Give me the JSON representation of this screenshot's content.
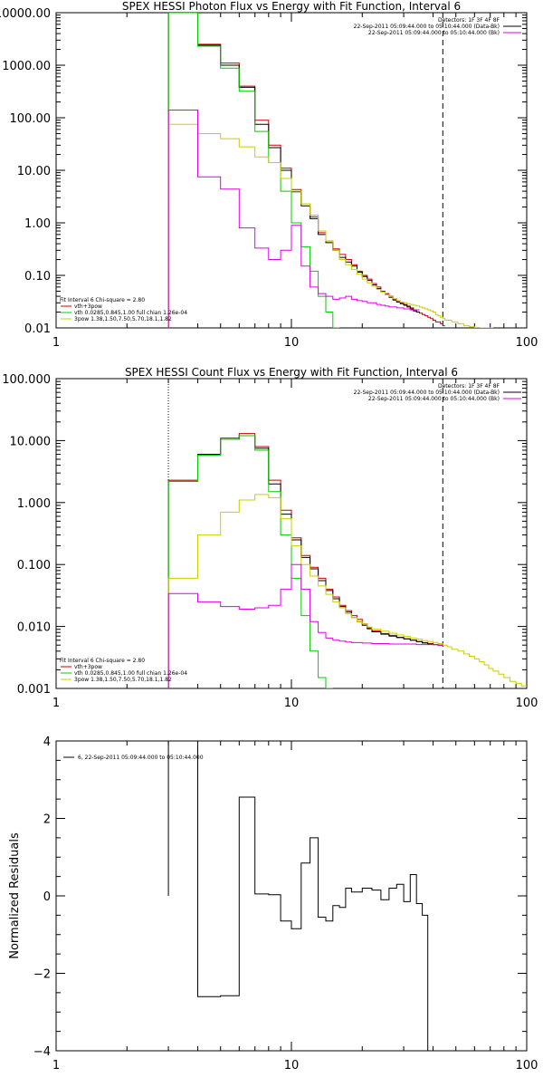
{
  "chart_data": [
    {
      "type": "line",
      "title": "SPEX HESSI Photon Flux vs Energy with Fit Function, Interval 6",
      "xscale": "log",
      "yscale": "log",
      "xlim": [
        1,
        100
      ],
      "ylim": [
        0.01,
        10000
      ],
      "xticks": [
        {
          "v": 1,
          "label": "1"
        },
        {
          "v": 10,
          "label": "10"
        },
        {
          "v": 100,
          "label": "100"
        }
      ],
      "yticks": [
        {
          "v": 0.01,
          "label": "0.01"
        },
        {
          "v": 0.1,
          "label": "0.10"
        },
        {
          "v": 1,
          "label": "1.00"
        },
        {
          "v": 10,
          "label": "10.00"
        },
        {
          "v": 100,
          "label": "100.00"
        },
        {
          "v": 1000,
          "label": "1000.00"
        },
        {
          "v": 10000,
          "label": "10000.00"
        }
      ],
      "vlines": [
        {
          "x": 3.0,
          "color": "#000000",
          "style": "dotted"
        },
        {
          "x": 44.0,
          "color": "#000000",
          "style": "dashed"
        }
      ],
      "legend_top": [
        "Detectors: 1F 3F 4F 8F",
        "22-Sep-2011 05:09:44.000 to 05:10:44.000 (Data-Bk)",
        "22-Sep-2011 05:09:44.000 to 05:10:44.000 (Bk)"
      ],
      "legend_top_colors": [
        "",
        "#000000",
        "#e000e0"
      ],
      "legend_bottom": [
        "Fit Interval 6   Chi-square = 2.80",
        "vth+3pow",
        "vth 0.0285,0.845,1.00  full chian 1.26e-04",
        "3pow 1.38,1.50,7.50,5.70,18.1,1.82"
      ],
      "legend_bottom_colors": [
        "",
        "#cc0000",
        "#00cc00",
        "#cccc00"
      ],
      "edges": [
        3.0,
        3.5,
        4.0,
        4.5,
        5.0,
        5.5,
        6.0,
        6.5,
        7.0,
        7.5,
        8.0,
        8.5,
        9.0,
        9.5,
        10.0,
        10.5,
        11.0,
        12.0,
        13.0,
        14.0,
        15.0,
        16.0,
        17.0,
        18.0,
        19.0,
        20.0,
        21.0,
        22.0,
        23.0,
        24.0,
        25.0,
        26.0,
        27.0,
        28.0,
        29.0,
        30.0,
        31.0,
        32.0,
        33.0,
        34.0,
        35.0,
        36.0,
        37.0,
        38.0,
        39.0,
        40.0,
        41.0,
        42.0,
        43.0,
        44.0,
        45.0,
        48.0,
        51.0,
        54.0,
        57.0,
        60.0,
        63.0,
        66.0,
        69.0,
        72.0
      ],
      "series": [
        {
          "name": "vth+3pow",
          "color": "#cc0000",
          "values": [
            10000,
            10000,
            2500,
            2500,
            1100,
            1100,
            400,
            400,
            90,
            90,
            30,
            30,
            11,
            11,
            4.3,
            4.3,
            2.3,
            1.3,
            0.65,
            0.45,
            0.32,
            0.25,
            0.2,
            0.16,
            0.12,
            0.1,
            0.085,
            0.07,
            0.06,
            0.05,
            0.045,
            0.04,
            0.035,
            0.032,
            0.03,
            0.028,
            0.026,
            0.024,
            0.022,
            0.02,
            0.019,
            0.018,
            0.017,
            0.016,
            0.015,
            0.014,
            0.013,
            0.013,
            0.012,
            0.011
          ]
        },
        {
          "name": "Data-Bk",
          "color": "#000000",
          "values": [
            10000,
            10000,
            2400,
            2400,
            1000,
            1000,
            380,
            380,
            75,
            75,
            27,
            27,
            10,
            10,
            3.9,
            3.9,
            2.1,
            1.2,
            0.6,
            0.42,
            0.3,
            0.22,
            0.18,
            0.15,
            0.115,
            0.095,
            0.08,
            0.066,
            0.056,
            0.048,
            0.043,
            0.038,
            0.034,
            0.031,
            0.029,
            0.027,
            0.025,
            0.023,
            0.021,
            0.02
          ]
        },
        {
          "name": "vth",
          "color": "#00cc00",
          "values": [
            10000,
            10000,
            2300,
            2300,
            880,
            880,
            320,
            320,
            55,
            55,
            14,
            14,
            4,
            4,
            1,
            1,
            0.35,
            0.12,
            0.04,
            0.02,
            0.01
          ]
        },
        {
          "name": "3pow",
          "color": "#cccc00",
          "values": [
            75,
            75,
            50,
            50,
            40,
            40,
            28,
            28,
            18,
            18,
            14,
            14,
            7,
            7,
            4,
            4,
            2.3,
            1.4,
            0.7,
            0.45,
            0.3,
            0.2,
            0.16,
            0.13,
            0.105,
            0.085,
            0.072,
            0.062,
            0.054,
            0.048,
            0.043,
            0.039,
            0.036,
            0.033,
            0.031,
            0.03,
            0.029,
            0.028,
            0.027,
            0.026,
            0.025,
            0.024,
            0.023,
            0.022,
            0.021,
            0.02,
            0.018,
            0.017,
            0.016,
            0.015,
            0.014,
            0.013,
            0.012,
            0.011,
            0.0105,
            0.0102,
            0.01,
            0.0098,
            0.0095
          ]
        },
        {
          "name": "Bk",
          "color": "#e000e0",
          "values": [
            140,
            140,
            7.5,
            7.5,
            4.4,
            4.4,
            0.8,
            0.8,
            0.33,
            0.33,
            0.2,
            0.2,
            0.3,
            0.3,
            0.9,
            0.9,
            0.15,
            0.06,
            0.045,
            0.04,
            0.035,
            0.037,
            0.04,
            0.035,
            0.033,
            0.032,
            0.03,
            0.03,
            0.028,
            0.027,
            0.026,
            0.025,
            0.025,
            0.024,
            0.024,
            0.023,
            0.023,
            0.022,
            0.022,
            0.022
          ]
        }
      ]
    },
    {
      "type": "line",
      "title": "SPEX HESSI Count Flux vs Energy with Fit Function, Interval 6",
      "xscale": "log",
      "yscale": "log",
      "xlim": [
        1,
        100
      ],
      "ylim": [
        0.001,
        100
      ],
      "xticks": [
        {
          "v": 1,
          "label": "1"
        },
        {
          "v": 10,
          "label": "10"
        },
        {
          "v": 100,
          "label": "100"
        }
      ],
      "yticks": [
        {
          "v": 0.001,
          "label": "0.001"
        },
        {
          "v": 0.01,
          "label": "0.010"
        },
        {
          "v": 0.1,
          "label": "0.100"
        },
        {
          "v": 1,
          "label": "1.000"
        },
        {
          "v": 10,
          "label": "10.000"
        },
        {
          "v": 100,
          "label": "100.000"
        }
      ],
      "vlines": [
        {
          "x": 3.0,
          "color": "#000000",
          "style": "dotted"
        },
        {
          "x": 44.0,
          "color": "#000000",
          "style": "dashed"
        }
      ],
      "legend_top": [
        "Detectors: 1F 3F 4F 8F",
        "22-Sep-2011 05:09:44.000 to 05:10:44.000 (Data-Bk)",
        "22-Sep-2011 05:09:44.000 to 05:10:44.000 (Bk)"
      ],
      "legend_top_colors": [
        "",
        "#000000",
        "#e000e0"
      ],
      "legend_bottom": [
        "Fit Interval 6   Chi-square = 2.80",
        "vth+3pow",
        "vth 0.0285,0.845,1.00  full chian 1.26e-04",
        "3pow 1.38,1.50,7.50,5.70,18.1,1.82"
      ],
      "legend_bottom_colors": [
        "",
        "#cc0000",
        "#00cc00",
        "#cccc00"
      ],
      "edges": [
        3.0,
        4.0,
        5.0,
        6.0,
        7.0,
        8.0,
        9.0,
        10.0,
        11.0,
        12.0,
        13.0,
        14.0,
        15.0,
        16.0,
        17.0,
        18.0,
        19.0,
        20.0,
        21.0,
        22.0,
        24.0,
        26.0,
        28.0,
        30.0,
        32.0,
        34.0,
        36.0,
        38.0,
        40.0,
        42.0,
        44.0,
        46.0,
        48.0,
        51.0,
        54.0,
        57.0,
        60.0,
        63.0,
        66.0,
        69.0,
        72.0,
        76.0,
        80.0,
        85.0,
        90.0,
        95.0,
        100.0
      ],
      "series": [
        {
          "name": "vth+3pow",
          "color": "#cc0000",
          "values": [
            2.3,
            6.0,
            11.0,
            13.0,
            8.0,
            2.3,
            0.75,
            0.27,
            0.14,
            0.09,
            0.06,
            0.04,
            0.03,
            0.022,
            0.018,
            0.015,
            0.013,
            0.011,
            0.0095,
            0.0085,
            0.0077,
            0.0072,
            0.0067,
            0.0063,
            0.006,
            0.0057,
            0.0055,
            0.0053,
            0.0051,
            0.005
          ]
        },
        {
          "name": "Data-Bk",
          "color": "#000000",
          "values": [
            2.2,
            6.0,
            10.5,
            12.0,
            7.5,
            2.0,
            0.65,
            0.25,
            0.13,
            0.085,
            0.055,
            0.038,
            0.028,
            0.021,
            0.017,
            0.014,
            0.012,
            0.0105,
            0.0092,
            0.0082,
            0.0075,
            0.007,
            0.0066,
            0.0063,
            0.006,
            0.0057,
            0.0054,
            0.0052,
            0.0051,
            0.005
          ]
        },
        {
          "name": "vth",
          "color": "#00cc00",
          "values": [
            2.2,
            5.8,
            10.5,
            12.0,
            7.0,
            1.5,
            0.3,
            0.06,
            0.015,
            0.004,
            0.0015,
            0.001
          ]
        },
        {
          "name": "3pow",
          "color": "#cccc00",
          "values": [
            0.06,
            0.3,
            0.7,
            1.1,
            1.35,
            1.2,
            0.55,
            0.2,
            0.1,
            0.065,
            0.045,
            0.033,
            0.025,
            0.02,
            0.016,
            0.014,
            0.012,
            0.011,
            0.0098,
            0.009,
            0.0084,
            0.0078,
            0.0073,
            0.0069,
            0.0065,
            0.0062,
            0.0059,
            0.0057,
            0.0055,
            0.0053,
            0.005,
            0.0047,
            0.0043,
            0.004,
            0.0036,
            0.0033,
            0.003,
            0.0027,
            0.0024,
            0.0021,
            0.0019,
            0.0017,
            0.0015,
            0.0013,
            0.0012,
            0.0011
          ]
        },
        {
          "name": "Bk",
          "color": "#e000e0",
          "values": [
            0.034,
            0.025,
            0.021,
            0.019,
            0.02,
            0.022,
            0.04,
            0.1,
            0.04,
            0.012,
            0.008,
            0.0065,
            0.006,
            0.0058,
            0.0056,
            0.0055,
            0.0055,
            0.0054,
            0.0054,
            0.0053,
            0.0053,
            0.0052,
            0.0052,
            0.0052,
            0.0052,
            0.0051,
            0.0051,
            0.0051,
            0.0051,
            0.005
          ]
        }
      ]
    },
    {
      "type": "line",
      "title": "",
      "xscale": "log",
      "yscale": "linear",
      "xlim": [
        1,
        100
      ],
      "ylim": [
        -4,
        4
      ],
      "ylabel": "Normalized Residuals",
      "xticks": [
        {
          "v": 1,
          "label": "1"
        },
        {
          "v": 10,
          "label": "10"
        },
        {
          "v": 100,
          "label": "100"
        }
      ],
      "yticks": [
        {
          "v": -4,
          "label": "−4"
        },
        {
          "v": -2,
          "label": "−2"
        },
        {
          "v": 0,
          "label": "0"
        },
        {
          "v": 2,
          "label": "2"
        },
        {
          "v": 4,
          "label": "4"
        }
      ],
      "legend_top": [
        "6, 22-Sep-2011 05:09:44.000 to 05:10:44.000"
      ],
      "legend_top_colors": [
        "#000000"
      ],
      "edges": [
        3.0,
        4.0,
        5.0,
        6.0,
        7.0,
        8.0,
        9.0,
        10.0,
        11.0,
        12.0,
        13.0,
        14.0,
        15.0,
        16.0,
        17.0,
        18.0,
        20.0,
        22.0,
        24.0,
        26.0,
        28.0,
        30.0,
        32.0,
        34.0,
        36.0,
        38.0,
        40.0,
        42.0,
        44.0
      ],
      "series": [
        {
          "name": "residuals",
          "color": "#000000",
          "values": [
            4.5,
            -2.6,
            -2.58,
            2.55,
            0.05,
            0.03,
            -0.65,
            -0.85,
            0.85,
            1.5,
            -0.55,
            -0.65,
            -0.25,
            -0.3,
            0.2,
            0.1,
            0.2,
            0.15,
            -0.1,
            0.2,
            0.3,
            -0.15,
            0.55,
            -0.2,
            -0.5
          ]
        }
      ]
    }
  ]
}
